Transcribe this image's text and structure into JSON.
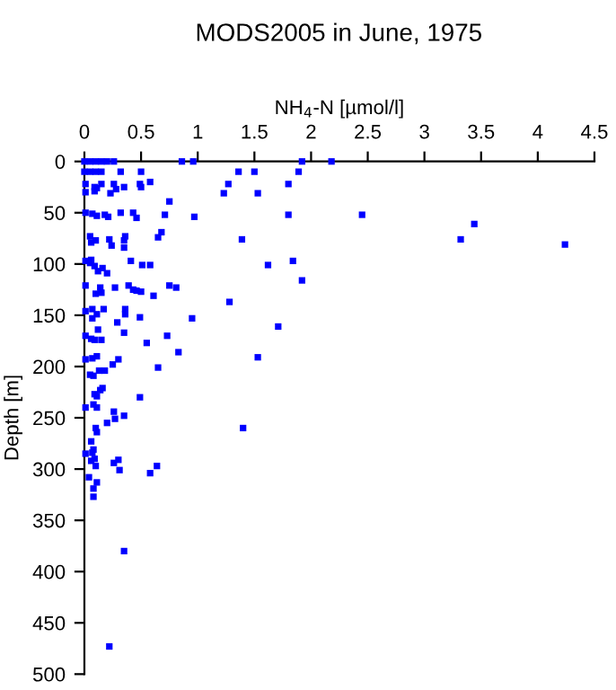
{
  "chart_data": {
    "type": "scatter",
    "title": "MODS2005 in June, 1975",
    "xlabel": "NH$_{4}$-N [µmol/l]",
    "ylabel": "Depth [m]",
    "series": [
      {
        "color": "#0000ff",
        "x": [
          0,
          0.05,
          0.1,
          0.15,
          0.2,
          0.26,
          0.86,
          0.96,
          1.92,
          2.18,
          0,
          0.05,
          0.1,
          0.15,
          0.32,
          0.5,
          1.36,
          1.5,
          1.89,
          0.01,
          0.09,
          0.15,
          0.26,
          0.28,
          0.35,
          0.49,
          0.58,
          0.5,
          1.27,
          1.8,
          1.23,
          1.53,
          0.01,
          0.23,
          0.11,
          0.09,
          0.75,
          0.01,
          0.07,
          0.11,
          0.18,
          0.21,
          0.32,
          0.43,
          0.46,
          0.71,
          0.97,
          1.8,
          2.45,
          3.44,
          3.32,
          4.24,
          0.05,
          0.1,
          0.06,
          0.22,
          0.36,
          0.35,
          0.24,
          0.35,
          0.65,
          0.68,
          1.39,
          0.01,
          0.06,
          0.09,
          0.05,
          0.12,
          0.16,
          0.2,
          0.41,
          0.51,
          0.58,
          1.62,
          1.84,
          1.92,
          0.01,
          0.14,
          0.1,
          0.15,
          0.27,
          0.39,
          0.43,
          0.46,
          0.5,
          0.61,
          0.75,
          0.81,
          1.28,
          0.01,
          0.07,
          0.11,
          0.07,
          0.17,
          0.29,
          0.36,
          0.36,
          0.49,
          0.95,
          1.71,
          0.01,
          0.06,
          0.12,
          0.09,
          0.15,
          0.35,
          0.55,
          0.73,
          0.83,
          1.53,
          0.01,
          0.07,
          0.11,
          0.13,
          0.05,
          0.18,
          0.25,
          0.3,
          0.65,
          0.08,
          0.09,
          0.16,
          0.14,
          0.11,
          0.01,
          0.08,
          0.11,
          0.49,
          0.26,
          0.27,
          0.35,
          0.2,
          0.1,
          0.11,
          1.4,
          0.06,
          0.08,
          0.01,
          0.07,
          0.06,
          0.09,
          0.1,
          0.26,
          0.3,
          0.31,
          0.64,
          0.58,
          0.04,
          0.11,
          0.08,
          0.08,
          0.35,
          0.22
        ],
        "values": [
          0,
          0,
          0,
          0,
          0,
          0,
          0,
          0,
          0,
          0,
          10,
          10,
          10,
          10,
          10,
          10,
          10,
          10,
          10,
          22,
          25,
          22,
          22,
          27,
          25,
          22,
          20,
          25,
          22,
          22,
          31,
          31,
          30,
          31,
          26,
          29,
          39,
          50,
          51,
          53,
          52,
          54,
          50,
          50,
          55,
          52,
          54,
          52,
          52,
          61,
          76,
          81,
          73,
          77,
          79,
          76,
          73,
          77,
          82,
          84,
          74,
          69,
          76,
          97,
          96,
          102,
          99,
          107,
          104,
          109,
          97,
          101,
          101,
          101,
          97,
          116,
          121,
          123,
          129,
          128,
          123,
          121,
          125,
          126,
          127,
          131,
          121,
          123,
          137,
          146,
          144,
          149,
          153,
          144,
          157,
          144,
          149,
          152,
          153,
          161,
          170,
          173,
          164,
          174,
          174,
          167,
          177,
          170,
          186,
          191,
          193,
          192,
          190,
          204,
          208,
          204,
          198,
          193,
          201,
          209,
          227,
          221,
          223,
          229,
          240,
          237,
          240,
          230,
          244,
          251,
          248,
          255,
          260,
          264,
          260,
          273,
          281,
          285,
          284,
          292,
          290,
          297,
          294,
          291,
          301,
          297,
          304,
          308,
          313,
          319,
          327,
          380,
          473
        ]
      }
    ],
    "marker": "square",
    "grid": false,
    "xlim": [
      0,
      4.5
    ],
    "xticks": [
      0,
      0.5,
      1,
      1.5,
      2,
      2.5,
      3,
      3.5,
      4,
      4.5
    ],
    "ylim": [
      500,
      0
    ],
    "yticks": [
      0,
      50,
      100,
      150,
      200,
      250,
      300,
      350,
      400,
      450,
      500
    ]
  }
}
